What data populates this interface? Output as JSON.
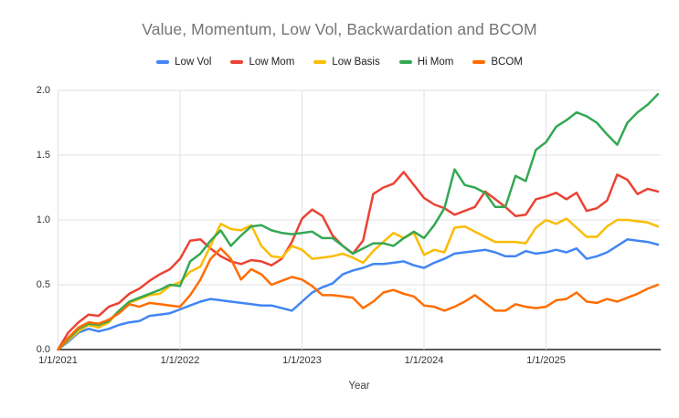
{
  "title": "Value, Momentum, Low Vol, Backwardation and BCOM",
  "axes": {
    "x_title": "Year",
    "y_ticks": [
      "0.0",
      "0.5",
      "1.0",
      "1.5",
      "2.0"
    ],
    "x_ticks": [
      {
        "label": "1/1/2021",
        "month_index": 0
      },
      {
        "label": "1/1/2022",
        "month_index": 12
      },
      {
        "label": "1/1/2023",
        "month_index": 24
      },
      {
        "label": "1/1/2024",
        "month_index": 36
      },
      {
        "label": "1/1/2025",
        "month_index": 48
      }
    ]
  },
  "colors": {
    "grid": "#e0e0e0",
    "axis_line": "#424242",
    "title_text": "#757575",
    "tick_text": "#333333"
  },
  "chart_data": {
    "type": "line",
    "title": "Value, Momentum, Low Vol, Backwardation and BCOM",
    "xlabel": "Year",
    "ylabel": "",
    "x_start": "1/2021",
    "x_frequency": "monthly",
    "n_points": 60,
    "x_tick_labels": [
      "1/1/2021",
      "1/1/2022",
      "1/1/2023",
      "1/1/2024",
      "1/1/2025"
    ],
    "y_tick_labels": [
      "0.0",
      "0.5",
      "1.0",
      "1.5",
      "2.0"
    ],
    "ylim": [
      0,
      2.0
    ],
    "grid": true,
    "legend_position": "top",
    "series": [
      {
        "name": "Low Vol",
        "color": "#4285F4",
        "values": [
          0.0,
          0.06,
          0.13,
          0.16,
          0.14,
          0.16,
          0.19,
          0.21,
          0.22,
          0.26,
          0.27,
          0.28,
          0.31,
          0.34,
          0.37,
          0.39,
          0.38,
          0.37,
          0.36,
          0.35,
          0.34,
          0.34,
          0.32,
          0.3,
          0.37,
          0.44,
          0.48,
          0.51,
          0.58,
          0.61,
          0.63,
          0.66,
          0.66,
          0.67,
          0.68,
          0.65,
          0.63,
          0.67,
          0.7,
          0.74,
          0.75,
          0.76,
          0.77,
          0.75,
          0.72,
          0.72,
          0.76,
          0.74,
          0.75,
          0.77,
          0.75,
          0.78,
          0.7,
          0.72,
          0.75,
          0.8,
          0.85,
          0.84,
          0.83,
          0.81
        ]
      },
      {
        "name": "Low Mom",
        "color": "#EA4335",
        "values": [
          0.0,
          0.13,
          0.21,
          0.27,
          0.26,
          0.33,
          0.36,
          0.43,
          0.47,
          0.53,
          0.58,
          0.62,
          0.7,
          0.84,
          0.85,
          0.78,
          0.72,
          0.68,
          0.66,
          0.69,
          0.68,
          0.65,
          0.7,
          0.83,
          1.01,
          1.08,
          1.03,
          0.88,
          0.8,
          0.74,
          0.84,
          1.2,
          1.25,
          1.28,
          1.37,
          1.27,
          1.17,
          1.12,
          1.09,
          1.04,
          1.07,
          1.1,
          1.22,
          1.16,
          1.1,
          1.03,
          1.04,
          1.16,
          1.18,
          1.21,
          1.16,
          1.21,
          1.07,
          1.09,
          1.15,
          1.35,
          1.31,
          1.2,
          1.24,
          1.22
        ]
      },
      {
        "name": "Low Basis",
        "color": "#FBBC04",
        "values": [
          0.0,
          0.07,
          0.14,
          0.19,
          0.17,
          0.21,
          0.3,
          0.36,
          0.39,
          0.42,
          0.43,
          0.49,
          0.52,
          0.6,
          0.64,
          0.8,
          0.97,
          0.93,
          0.92,
          0.96,
          0.8,
          0.72,
          0.71,
          0.8,
          0.77,
          0.7,
          0.71,
          0.72,
          0.74,
          0.71,
          0.67,
          0.76,
          0.83,
          0.9,
          0.86,
          0.9,
          0.73,
          0.77,
          0.75,
          0.94,
          0.95,
          0.91,
          0.87,
          0.83,
          0.83,
          0.83,
          0.82,
          0.94,
          1.0,
          0.97,
          1.01,
          0.94,
          0.87,
          0.87,
          0.95,
          1.0,
          1.0,
          0.99,
          0.98,
          0.95
        ]
      },
      {
        "name": "Hi Mom",
        "color": "#34A853",
        "values": [
          0.0,
          0.08,
          0.16,
          0.2,
          0.19,
          0.22,
          0.3,
          0.37,
          0.4,
          0.43,
          0.46,
          0.5,
          0.49,
          0.68,
          0.74,
          0.84,
          0.92,
          0.8,
          0.88,
          0.95,
          0.96,
          0.92,
          0.9,
          0.89,
          0.9,
          0.91,
          0.86,
          0.86,
          0.8,
          0.74,
          0.78,
          0.82,
          0.82,
          0.8,
          0.86,
          0.91,
          0.86,
          0.96,
          1.09,
          1.39,
          1.27,
          1.25,
          1.21,
          1.1,
          1.1,
          1.34,
          1.3,
          1.54,
          1.6,
          1.72,
          1.77,
          1.83,
          1.8,
          1.75,
          1.66,
          1.58,
          1.75,
          1.83,
          1.89,
          1.97
        ]
      },
      {
        "name": "BCOM",
        "color": "#FF6D01",
        "values": [
          0.0,
          0.09,
          0.17,
          0.21,
          0.2,
          0.23,
          0.28,
          0.35,
          0.33,
          0.36,
          0.35,
          0.34,
          0.33,
          0.42,
          0.54,
          0.7,
          0.78,
          0.7,
          0.54,
          0.62,
          0.58,
          0.5,
          0.53,
          0.56,
          0.54,
          0.49,
          0.42,
          0.42,
          0.41,
          0.4,
          0.32,
          0.37,
          0.44,
          0.46,
          0.43,
          0.41,
          0.34,
          0.33,
          0.3,
          0.33,
          0.37,
          0.42,
          0.36,
          0.3,
          0.3,
          0.35,
          0.33,
          0.32,
          0.33,
          0.38,
          0.39,
          0.44,
          0.37,
          0.36,
          0.39,
          0.37,
          0.4,
          0.43,
          0.47,
          0.5
        ]
      }
    ]
  }
}
